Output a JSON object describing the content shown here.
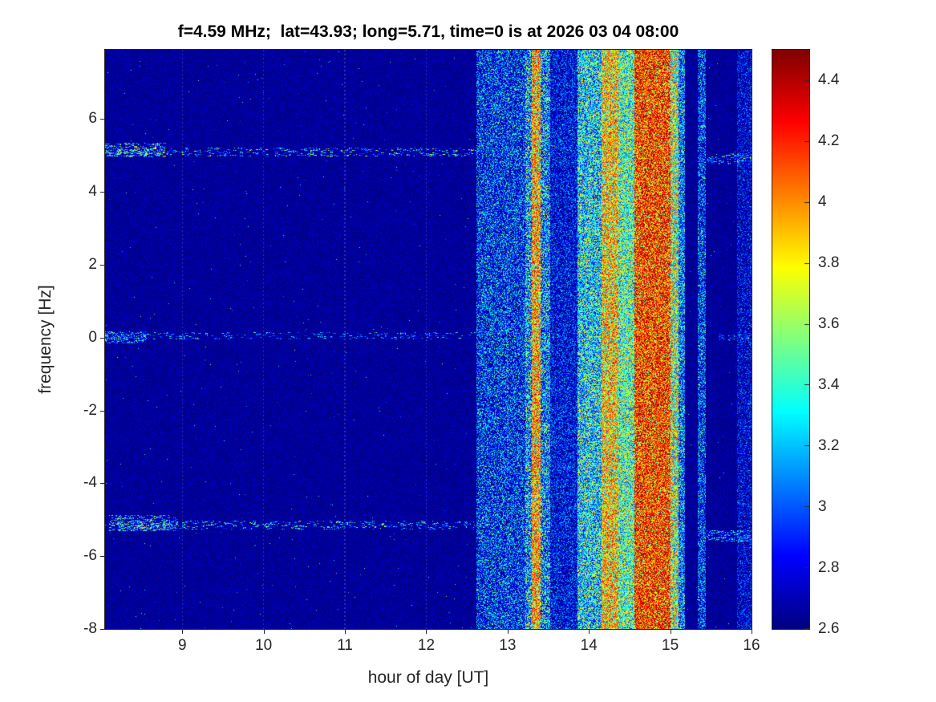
{
  "chart_data": {
    "type": "heatmap",
    "title": "f=4.59 MHz;  lat=43.93; long=5.71, time=0 is at 2026 03 04 08:00",
    "xlabel": "hour of day [UT]",
    "ylabel": "frequency [Hz]",
    "xlim": [
      8.05,
      16
    ],
    "ylim": [
      -8,
      7.9
    ],
    "xticks": [
      9,
      10,
      11,
      12,
      13,
      14,
      15,
      16
    ],
    "yticks": [
      6,
      4,
      2,
      0,
      -2,
      -4,
      -6,
      -8
    ],
    "grid_hours": [
      9,
      10,
      11,
      12,
      13,
      14,
      15,
      16
    ],
    "grid_style": "faint dotted vertical lines at integer hours",
    "colormap": "jet",
    "colorbar": {
      "min": 2.6,
      "max": 4.5,
      "ticks": [
        4.4,
        4.2,
        4,
        3.8,
        3.6,
        3.4,
        3.2,
        3,
        2.8,
        2.6
      ]
    },
    "background_level": {
      "base": 2.6,
      "texture": 0.16
    },
    "speckle": {
      "probability": 0.0015,
      "max_boost": 0.9
    },
    "vertical_bands": [
      {
        "x0": 12.62,
        "x1": 13.22,
        "vmin": 2.62,
        "vmax": 3.6,
        "skew": 2.2,
        "desc": "weak blue speckle band"
      },
      {
        "x0": 13.22,
        "x1": 13.3,
        "vmin": 2.7,
        "vmax": 3.9,
        "skew": 1.5,
        "desc": "cyan-green edge"
      },
      {
        "x0": 13.3,
        "x1": 13.41,
        "vmin": 3.0,
        "vmax": 4.35,
        "skew": 0.55,
        "desc": "narrow orange stripe"
      },
      {
        "x0": 13.41,
        "x1": 13.52,
        "vmin": 2.7,
        "vmax": 3.8,
        "skew": 1.6,
        "desc": "cyan edge"
      },
      {
        "x0": 13.52,
        "x1": 13.86,
        "vmin": 2.6,
        "vmax": 3.3,
        "skew": 2.2,
        "desc": "faint blue gap"
      },
      {
        "x0": 13.86,
        "x1": 14.16,
        "vmin": 2.8,
        "vmax": 3.9,
        "skew": 1.3,
        "desc": "cyan-green noise"
      },
      {
        "x0": 14.16,
        "x1": 14.36,
        "vmin": 3.0,
        "vmax": 4.3,
        "skew": 0.6,
        "desc": "orange stripe"
      },
      {
        "x0": 14.36,
        "x1": 14.56,
        "vmin": 2.9,
        "vmax": 4.0,
        "skew": 1.0,
        "desc": "green-cyan stripe"
      },
      {
        "x0": 14.56,
        "x1": 15.0,
        "vmin": 3.2,
        "vmax": 4.5,
        "skew": 0.45,
        "desc": "strong red-orange band"
      },
      {
        "x0": 15.0,
        "x1": 15.1,
        "vmin": 2.9,
        "vmax": 4.2,
        "skew": 0.9,
        "desc": "yellow-green edge"
      },
      {
        "x0": 15.1,
        "x1": 15.18,
        "vmin": 2.7,
        "vmax": 3.7,
        "skew": 1.5,
        "desc": "cyan tail"
      },
      {
        "x0": 15.34,
        "x1": 15.44,
        "vmin": 2.62,
        "vmax": 3.6,
        "skew": 2.0,
        "desc": "narrow blue noise band"
      },
      {
        "x0": 15.82,
        "x1": 16.0,
        "vmin": 2.6,
        "vmax": 3.2,
        "skew": 2.4,
        "desc": "faint right-edge noise"
      }
    ],
    "horizontal_streaks": [
      {
        "y": 5.1,
        "halfwidth": 0.12,
        "x0": 8.05,
        "x1": 12.62,
        "density": 0.3,
        "max": 3.9,
        "desc": "interference line ~+5.1 Hz"
      },
      {
        "y": 5.15,
        "halfwidth": 0.2,
        "x0": 8.05,
        "x1": 8.8,
        "density": 0.55,
        "max": 4.0,
        "desc": "bright left segment"
      },
      {
        "y": 0.05,
        "halfwidth": 0.1,
        "x0": 8.05,
        "x1": 12.62,
        "density": 0.22,
        "max": 3.6,
        "desc": "carrier line ~0 Hz"
      },
      {
        "y": 0.0,
        "halfwidth": 0.16,
        "x0": 8.05,
        "x1": 8.55,
        "density": 0.5,
        "max": 3.7,
        "desc": "bright left segment"
      },
      {
        "y": -5.15,
        "halfwidth": 0.12,
        "x0": 8.05,
        "x1": 12.62,
        "density": 0.26,
        "max": 3.8,
        "desc": "interference line ~-5.1 Hz"
      },
      {
        "y": -5.1,
        "halfwidth": 0.22,
        "x0": 8.1,
        "x1": 8.95,
        "density": 0.55,
        "max": 3.9,
        "desc": "bright left segment"
      },
      {
        "y": 4.9,
        "halfwidth": 0.16,
        "x0": 15.45,
        "x1": 16.0,
        "density": 0.5,
        "max": 3.8,
        "desc": "right interference ~+4.9 Hz"
      },
      {
        "y": -5.45,
        "halfwidth": 0.16,
        "x0": 15.45,
        "x1": 16.0,
        "density": 0.5,
        "max": 3.7,
        "desc": "right interference ~-5.45 Hz"
      },
      {
        "y": 0.0,
        "halfwidth": 0.1,
        "x0": 15.6,
        "x1": 16.0,
        "density": 0.3,
        "max": 3.4,
        "desc": "right carrier remnant"
      }
    ]
  }
}
